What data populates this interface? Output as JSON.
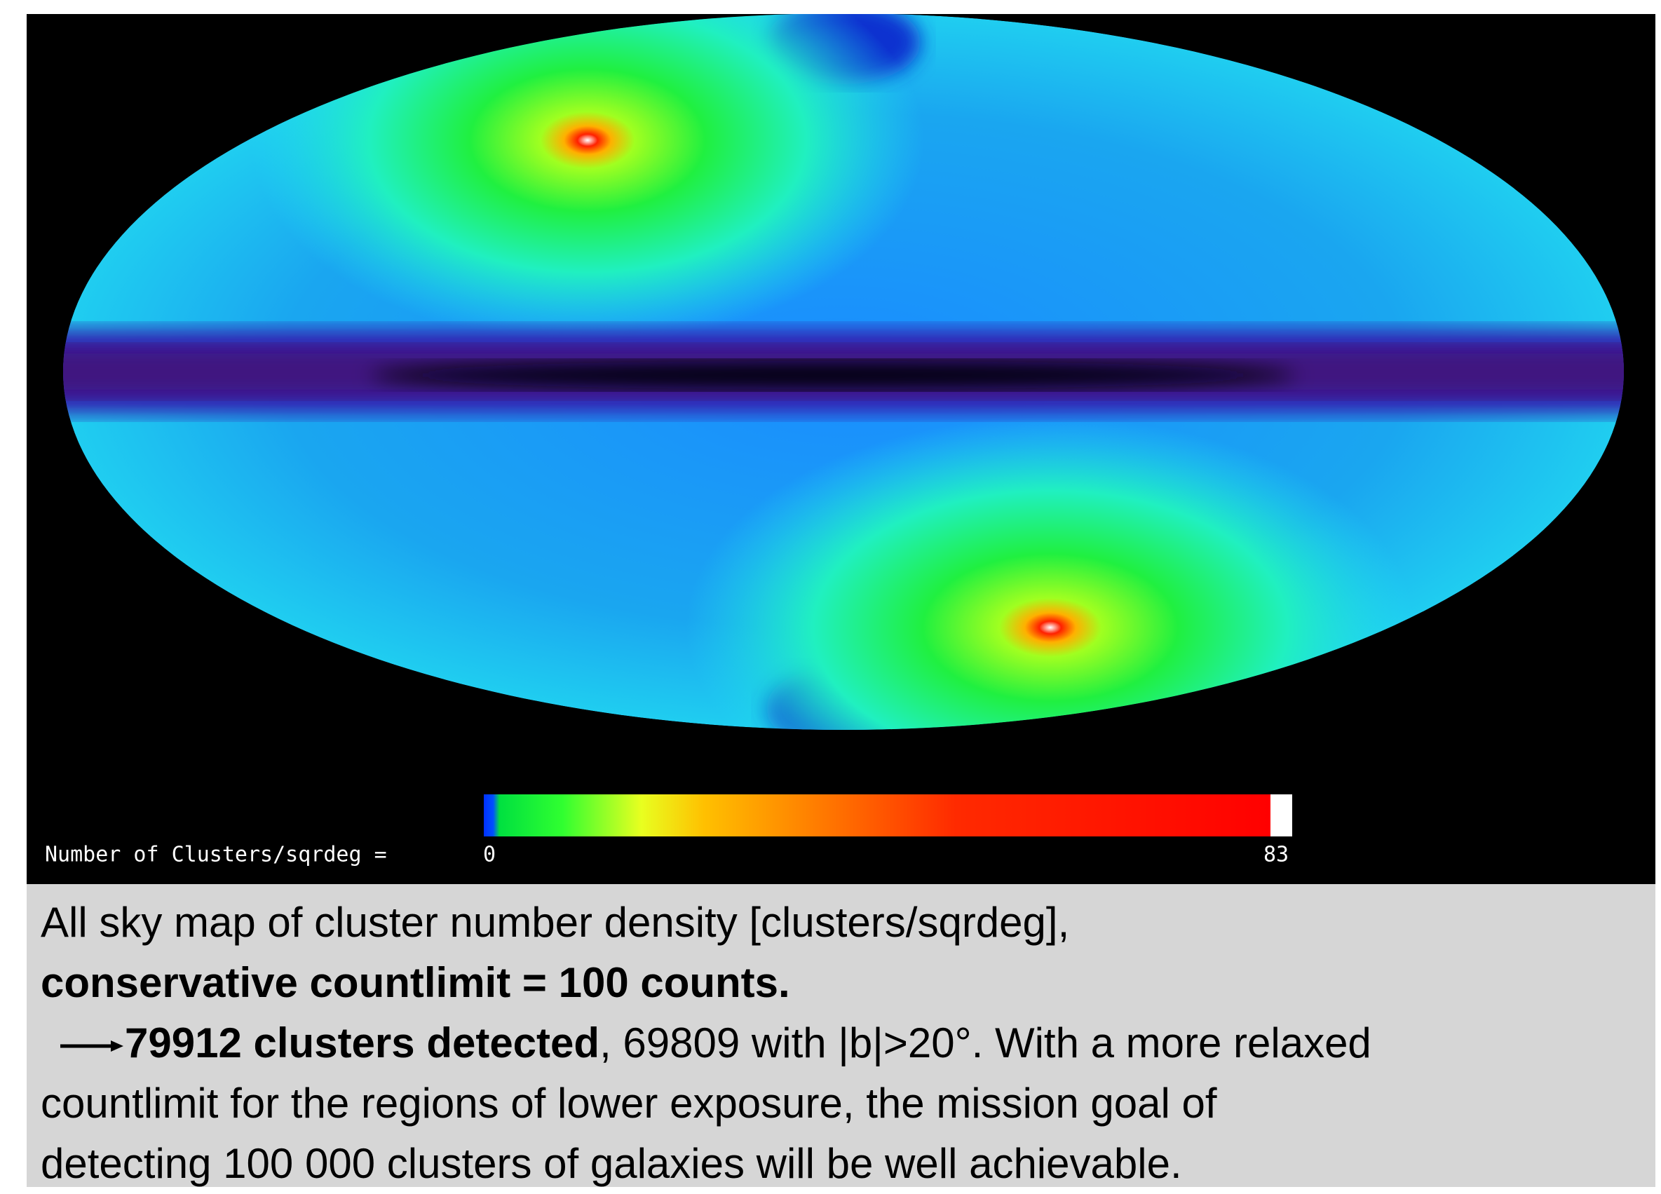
{
  "map": {
    "colorbar": {
      "label": "Number of Clusters/sqrdeg =",
      "ticks": [
        0,
        83
      ]
    }
  },
  "caption": {
    "line1": "All sky map of cluster number density [clusters/sqrdeg],",
    "line2": "conservative countlimit = 100 counts.",
    "highlight": "79912 clusters detected",
    "line3_rest": ", 69809 with |b|>20°. With a more relaxed",
    "line4": "countlimit for the regions of lower exposure, the mission goal of",
    "line5": "detecting 100 000 clusters of galaxies will be well achievable."
  }
}
